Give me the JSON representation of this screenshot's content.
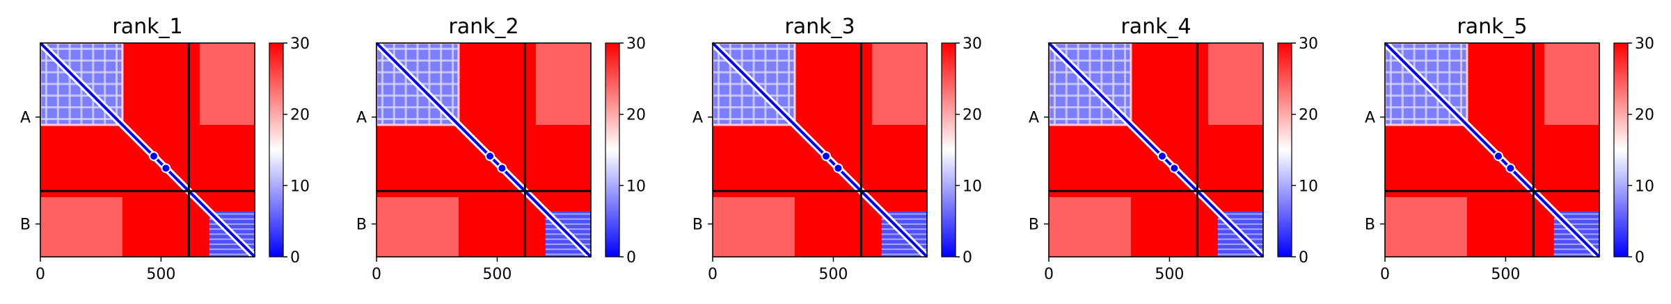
{
  "chart_data": [
    {
      "type": "heatmap",
      "title": "rank_1",
      "xticks": [
        0,
        500
      ],
      "yticks": [
        "A",
        "B"
      ],
      "xlim": [
        0,
        888
      ],
      "chain_boundary": 615,
      "chains": [
        {
          "name": "A",
          "range": [
            0,
            615
          ]
        },
        {
          "name": "B",
          "range": [
            615,
            888
          ]
        }
      ],
      "colorbar": {
        "min": 0,
        "max": 30,
        "ticks": [
          0,
          10,
          20,
          30
        ],
        "colors": [
          "#0000ff",
          "#ffffff",
          "#ff0000"
        ]
      }
    },
    {
      "type": "heatmap",
      "title": "rank_2",
      "xticks": [
        0,
        500
      ],
      "yticks": [
        "A",
        "B"
      ],
      "xlim": [
        0,
        888
      ],
      "chain_boundary": 615,
      "chains": [
        {
          "name": "A",
          "range": [
            0,
            615
          ]
        },
        {
          "name": "B",
          "range": [
            615,
            888
          ]
        }
      ],
      "colorbar": {
        "min": 0,
        "max": 30,
        "ticks": [
          0,
          10,
          20,
          30
        ],
        "colors": [
          "#0000ff",
          "#ffffff",
          "#ff0000"
        ]
      }
    },
    {
      "type": "heatmap",
      "title": "rank_3",
      "xticks": [
        0,
        500
      ],
      "yticks": [
        "A",
        "B"
      ],
      "xlim": [
        0,
        888
      ],
      "chain_boundary": 615,
      "chains": [
        {
          "name": "A",
          "range": [
            0,
            615
          ]
        },
        {
          "name": "B",
          "range": [
            615,
            888
          ]
        }
      ],
      "colorbar": {
        "min": 0,
        "max": 30,
        "ticks": [
          0,
          10,
          20,
          30
        ],
        "colors": [
          "#0000ff",
          "#ffffff",
          "#ff0000"
        ]
      }
    },
    {
      "type": "heatmap",
      "title": "rank_4",
      "xticks": [
        0,
        500
      ],
      "yticks": [
        "A",
        "B"
      ],
      "xlim": [
        0,
        888
      ],
      "chain_boundary": 615,
      "chains": [
        {
          "name": "A",
          "range": [
            0,
            615
          ]
        },
        {
          "name": "B",
          "range": [
            615,
            888
          ]
        }
      ],
      "colorbar": {
        "min": 0,
        "max": 30,
        "ticks": [
          0,
          10,
          20,
          30
        ],
        "colors": [
          "#0000ff",
          "#ffffff",
          "#ff0000"
        ]
      }
    },
    {
      "type": "heatmap",
      "title": "rank_5",
      "xticks": [
        0,
        500
      ],
      "yticks": [
        "A",
        "B"
      ],
      "xlim": [
        0,
        888
      ],
      "chain_boundary": 615,
      "chains": [
        {
          "name": "A",
          "range": [
            0,
            615
          ]
        },
        {
          "name": "B",
          "range": [
            615,
            888
          ]
        }
      ],
      "colorbar": {
        "min": 0,
        "max": 30,
        "ticks": [
          0,
          10,
          20,
          30
        ],
        "colors": [
          "#0000ff",
          "#ffffff",
          "#ff0000"
        ]
      }
    }
  ]
}
